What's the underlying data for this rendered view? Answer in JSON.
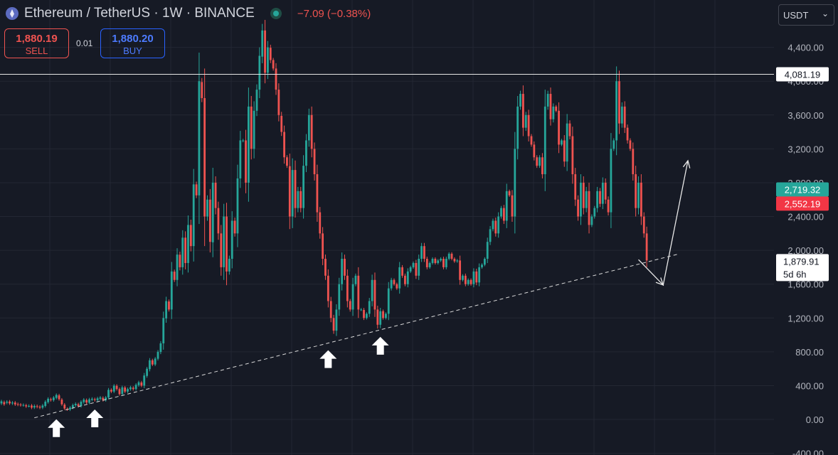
{
  "header": {
    "pair": "Ethereum / TetherUS · 1W · BINANCE",
    "change": "−7.09 (−0.38%)"
  },
  "trade": {
    "sell_price": "1,880.19",
    "sell_label": "SELL",
    "spread": "0.01",
    "buy_price": "1,880.20",
    "buy_label": "BUY"
  },
  "currency": {
    "selected": "USDT"
  },
  "colors": {
    "up": "#26a69a",
    "down": "#ef5350",
    "background": "#161a25"
  },
  "chart_data": {
    "type": "candlestick",
    "y_axis": {
      "ticks": [
        "4,400.00",
        "4,000.00",
        "3,600.00",
        "3,200.00",
        "2,800.00",
        "2,400.00",
        "2,000.00",
        "1,600.00",
        "1,200.00",
        "800.00",
        "400.00",
        "0.00",
        "-400.00"
      ],
      "ylim": [
        -420,
        4960
      ]
    },
    "price_labels": {
      "resistance": "4,081.19",
      "green": "2,719.32",
      "red": "2,552.19",
      "last": "1,879.91",
      "countdown": "5d 6h"
    },
    "resistance_level": 4081.19,
    "trendline": [
      {
        "i": 12,
        "y": 20
      },
      {
        "i": 247,
        "y": 1960
      }
    ],
    "projection": [
      {
        "i": 232,
        "y": 1890
      },
      {
        "i": 241,
        "y": 1590
      },
      {
        "i": 250,
        "y": 3060
      }
    ],
    "arrow_marks": [
      20,
      34,
      119,
      138
    ],
    "candles": [
      [
        190,
        215
      ],
      [
        205,
        180
      ],
      [
        198,
        210
      ],
      [
        212,
        190
      ],
      [
        190,
        200
      ],
      [
        200,
        178
      ],
      [
        182,
        175
      ],
      [
        176,
        170
      ],
      [
        170,
        172
      ],
      [
        168,
        155
      ],
      [
        160,
        160
      ],
      [
        165,
        140
      ],
      [
        142,
        160
      ],
      [
        158,
        150
      ],
      [
        150,
        140
      ],
      [
        140,
        165
      ],
      [
        160,
        210
      ],
      [
        205,
        245
      ],
      [
        240,
        230
      ],
      [
        228,
        260
      ],
      [
        255,
        290
      ],
      [
        285,
        240
      ],
      [
        235,
        180
      ],
      [
        175,
        130
      ],
      [
        125,
        120
      ],
      [
        118,
        140
      ],
      [
        140,
        170
      ],
      [
        168,
        185
      ],
      [
        180,
        160
      ],
      [
        158,
        210
      ],
      [
        205,
        235
      ],
      [
        230,
        200
      ],
      [
        198,
        238
      ],
      [
        232,
        245
      ],
      [
        240,
        230
      ],
      [
        228,
        250
      ],
      [
        245,
        260
      ],
      [
        255,
        230
      ],
      [
        228,
        260
      ],
      [
        260,
        350
      ],
      [
        350,
        330
      ],
      [
        330,
        400
      ],
      [
        398,
        360
      ],
      [
        360,
        300
      ],
      [
        302,
        380
      ],
      [
        378,
        330
      ],
      [
        330,
        360
      ],
      [
        358,
        380
      ],
      [
        375,
        360
      ],
      [
        360,
        410
      ],
      [
        405,
        440
      ],
      [
        438,
        400
      ],
      [
        400,
        520
      ],
      [
        515,
        600
      ],
      [
        595,
        700
      ],
      [
        700,
        650
      ],
      [
        650,
        720
      ],
      [
        718,
        800
      ],
      [
        798,
        900
      ],
      [
        900,
        1200
      ],
      [
        1195,
        1400
      ],
      [
        1395,
        1300
      ],
      [
        1300,
        1750
      ],
      [
        1748,
        1650
      ],
      [
        1650,
        1950
      ],
      [
        1948,
        1800
      ],
      [
        1800,
        2150
      ],
      [
        2150,
        1850
      ],
      [
        1850,
        2300
      ],
      [
        2300,
        2050
      ],
      [
        2050,
        2780
      ],
      [
        2780,
        2650
      ],
      [
        2650,
        4000
      ],
      [
        3990,
        3800
      ],
      [
        3800,
        2400
      ],
      [
        2400,
        2600
      ],
      [
        2600,
        2100
      ],
      [
        2095,
        2800
      ],
      [
        2800,
        2500
      ],
      [
        2500,
        2200
      ],
      [
        2200,
        1800
      ],
      [
        1800,
        2400
      ],
      [
        2400,
        1750
      ],
      [
        1750,
        1900
      ],
      [
        1900,
        2350
      ],
      [
        2350,
        2200
      ],
      [
        2200,
        2850
      ],
      [
        2850,
        3300
      ],
      [
        3295,
        3300
      ],
      [
        3300,
        2800
      ],
      [
        2800,
        3700
      ],
      [
        3700,
        3200
      ],
      [
        3200,
        3650
      ],
      [
        3650,
        3900
      ],
      [
        3900,
        4300
      ],
      [
        4290,
        4600
      ],
      [
        4600,
        4100
      ],
      [
        4100,
        4400
      ],
      [
        4395,
        4250
      ],
      [
        4250,
        4150
      ],
      [
        4150,
        3900
      ],
      [
        3900,
        3600
      ],
      [
        3590,
        3400
      ],
      [
        3400,
        3100
      ],
      [
        3100,
        3000
      ],
      [
        2995,
        2400
      ],
      [
        2400,
        2950
      ],
      [
        2950,
        2500
      ],
      [
        2500,
        2700
      ],
      [
        2700,
        2500
      ],
      [
        2500,
        3000
      ],
      [
        3000,
        3300
      ],
      [
        3300,
        3600
      ],
      [
        3600,
        3200
      ],
      [
        3200,
        2900
      ],
      [
        2900,
        2450
      ],
      [
        2450,
        2200
      ],
      [
        2200,
        1900
      ],
      [
        1900,
        1700
      ],
      [
        1700,
        1400
      ],
      [
        1400,
        1200
      ],
      [
        1200,
        1050
      ],
      [
        1050,
        1300
      ],
      [
        1300,
        1600
      ],
      [
        1600,
        1900
      ],
      [
        1900,
        1700
      ],
      [
        1700,
        1400
      ],
      [
        1400,
        1300
      ],
      [
        1300,
        1600
      ],
      [
        1600,
        1700
      ],
      [
        1700,
        1300
      ],
      [
        1300,
        1300
      ],
      [
        1295,
        1200
      ],
      [
        1200,
        1250
      ],
      [
        1250,
        1400
      ],
      [
        1400,
        1650
      ],
      [
        1650,
        1300
      ],
      [
        1300,
        1120
      ],
      [
        1120,
        1280
      ],
      [
        1280,
        1200
      ],
      [
        1200,
        1250
      ],
      [
        1250,
        1550
      ],
      [
        1550,
        1650
      ],
      [
        1650,
        1600
      ],
      [
        1600,
        1550
      ],
      [
        1550,
        1800
      ],
      [
        1800,
        1700
      ],
      [
        1700,
        1600
      ],
      [
        1600,
        1750
      ],
      [
        1750,
        1800
      ],
      [
        1800,
        1850
      ],
      [
        1850,
        1700
      ],
      [
        1700,
        1900
      ],
      [
        1900,
        2050
      ],
      [
        2050,
        1900
      ],
      [
        1900,
        1800
      ],
      [
        1800,
        1850
      ],
      [
        1850,
        1900
      ],
      [
        1900,
        1850
      ],
      [
        1850,
        1880
      ],
      [
        1880,
        1900
      ],
      [
        1900,
        1800
      ],
      [
        1800,
        1900
      ],
      [
        1900,
        1960
      ],
      [
        1960,
        1900
      ],
      [
        1900,
        1870
      ],
      [
        1870,
        1880
      ],
      [
        1880,
        1650
      ],
      [
        1650,
        1700
      ],
      [
        1700,
        1600
      ],
      [
        1600,
        1650
      ],
      [
        1650,
        1600
      ],
      [
        1600,
        1750
      ],
      [
        1750,
        1620
      ],
      [
        1620,
        1800
      ],
      [
        1800,
        1830
      ],
      [
        1830,
        1900
      ],
      [
        1900,
        2100
      ],
      [
        2100,
        2250
      ],
      [
        2250,
        2350
      ],
      [
        2350,
        2200
      ],
      [
        2200,
        2400
      ],
      [
        2400,
        2500
      ],
      [
        2500,
        2350
      ],
      [
        2350,
        2700
      ],
      [
        2700,
        2650
      ],
      [
        2650,
        2400
      ],
      [
        2400,
        3200
      ],
      [
        3200,
        3700
      ],
      [
        3700,
        3850
      ],
      [
        3850,
        3450
      ],
      [
        3450,
        3600
      ],
      [
        3600,
        3350
      ],
      [
        3350,
        3250
      ],
      [
        3250,
        3100
      ],
      [
        3100,
        3000
      ],
      [
        3000,
        3100
      ],
      [
        3100,
        2900
      ],
      [
        2900,
        3700
      ],
      [
        3700,
        3850
      ],
      [
        3850,
        3550
      ],
      [
        3550,
        3700
      ],
      [
        3700,
        3650
      ],
      [
        3650,
        3250
      ],
      [
        3250,
        3300
      ],
      [
        3300,
        3050
      ],
      [
        3050,
        3500
      ],
      [
        3500,
        3350
      ],
      [
        3350,
        2900
      ],
      [
        2900,
        2600
      ],
      [
        2600,
        2400
      ],
      [
        2400,
        2800
      ],
      [
        2800,
        2500
      ],
      [
        2500,
        2700
      ],
      [
        2700,
        2300
      ],
      [
        2300,
        2400
      ],
      [
        2400,
        2500
      ],
      [
        2500,
        2700
      ],
      [
        2700,
        2550
      ],
      [
        2550,
        2800
      ],
      [
        2800,
        2600
      ],
      [
        2600,
        2450
      ],
      [
        2450,
        3200
      ],
      [
        3200,
        3300
      ],
      [
        3300,
        4000
      ],
      [
        4000,
        3500
      ],
      [
        3500,
        3700
      ],
      [
        3700,
        3450
      ],
      [
        3450,
        3300
      ],
      [
        3300,
        3200
      ],
      [
        3200,
        2900
      ],
      [
        2900,
        2500
      ],
      [
        2500,
        2800
      ],
      [
        2800,
        2400
      ],
      [
        2400,
        2200
      ],
      [
        2200,
        1880
      ]
    ]
  }
}
